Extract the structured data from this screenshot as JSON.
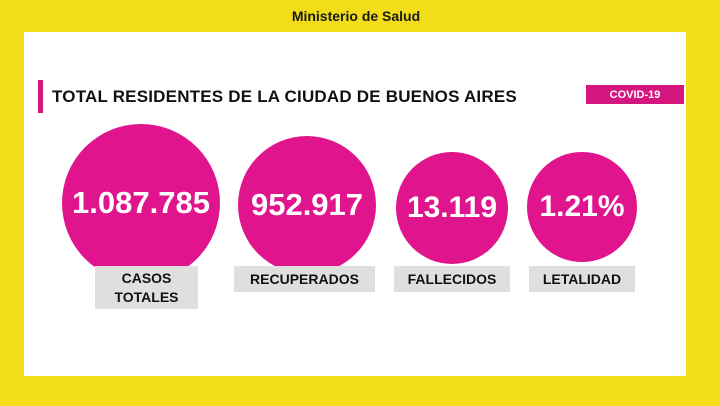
{
  "header": {
    "ministry": "Ministerio de Salud"
  },
  "title": "TOTAL RESIDENTES DE LA CIUDAD DE BUENOS AIRES",
  "badge": "COVID-19",
  "stats": [
    {
      "value": "1.087.785",
      "label": "CASOS TOTALES"
    },
    {
      "value": "952.917",
      "label": "RECUPERADOS"
    },
    {
      "value": "13.119",
      "label": "FALLECIDOS"
    },
    {
      "value": "1.21%",
      "label": "LETALIDAD"
    }
  ],
  "colors": {
    "frame": "#f2dd18",
    "accent": "#e0148d",
    "label_bg": "#dfdfdf"
  }
}
